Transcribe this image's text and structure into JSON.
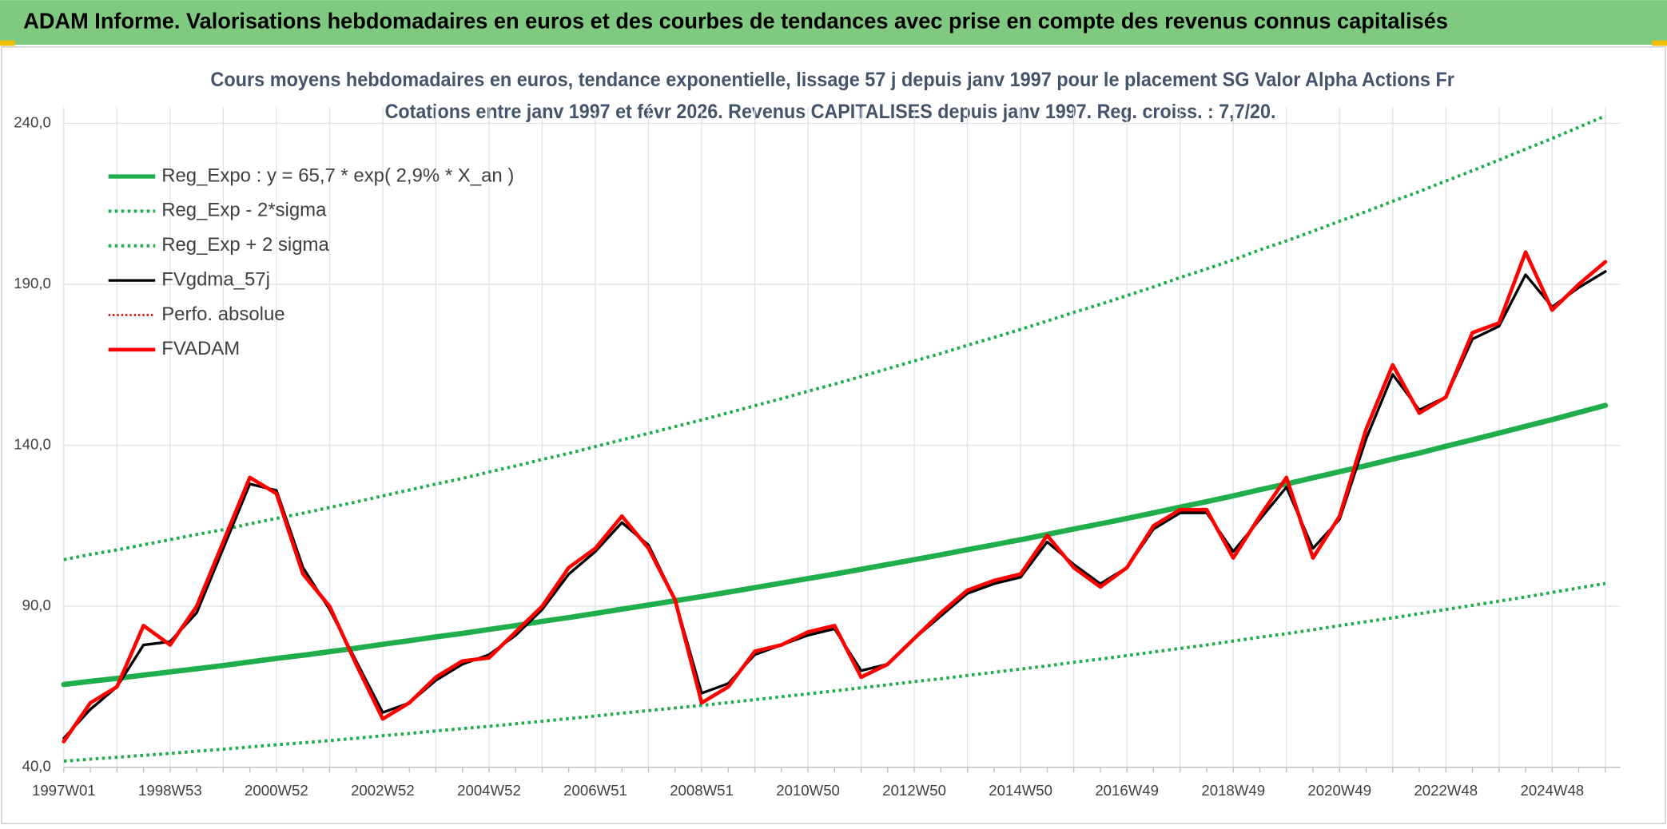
{
  "chart_data": {
    "type": "line",
    "title": "ADAM Informe. Valorisations hebdomadaires en euros et des courbes de tendances avec prise en compte des revenus connus capitalisés",
    "subtitle": [
      "Cours moyens hebdomadaires en euros, tendance exponentielle, lissage 57 j depuis janv 1997 pour le placement SG Valor Alpha Actions Fr",
      "Cotations entre janv 1997 et févr 2026. Revenus CAPITALISES depuis janv 1997. Reg. croiss. : 7,7/20."
    ],
    "categories": [
      "1997W01",
      null,
      null,
      null,
      "1998W53",
      null,
      null,
      null,
      "2000W52",
      null,
      null,
      null,
      "2002W52",
      null,
      null,
      null,
      "2004W52",
      null,
      null,
      null,
      "2006W51",
      null,
      null,
      null,
      "2008W51",
      null,
      null,
      null,
      "2010W50",
      null,
      null,
      null,
      "2012W50",
      null,
      null,
      null,
      "2014W50",
      null,
      null,
      null,
      "2016W49",
      null,
      null,
      null,
      "2018W49",
      null,
      null,
      null,
      "2020W49",
      null,
      null,
      null,
      "2022W48",
      null,
      null,
      null,
      "2024W48",
      null,
      null
    ],
    "ylim": [
      40,
      245
    ],
    "yticks": [
      {
        "value": 40,
        "label": "40,0"
      },
      {
        "value": 90,
        "label": "90,0"
      },
      {
        "value": 140,
        "label": "140,0"
      },
      {
        "value": 190,
        "label": "190,0"
      },
      {
        "value": 240,
        "label": "240,0"
      }
    ],
    "grid": true,
    "legend": "upper left",
    "series": [
      {
        "name": "Reg_Expo : y = 65,7 * exp( 2,9% *  X_an )",
        "color": "#1fae4b",
        "style": "solid",
        "linewidth": 5,
        "values": [
          65.7,
          66.7,
          67.6,
          68.6,
          69.6,
          70.6,
          71.6,
          72.7,
          73.8,
          74.8,
          75.9,
          77.0,
          78.2,
          79.3,
          80.5,
          81.6,
          82.8,
          84.0,
          85.3,
          86.5,
          87.8,
          89.1,
          90.4,
          91.7,
          93.0,
          94.4,
          95.8,
          97.2,
          98.6,
          100.0,
          101.5,
          103.0,
          104.5,
          106.0,
          107.6,
          109.1,
          110.7,
          112.3,
          114.0,
          115.6,
          117.3,
          119.0,
          120.8,
          122.5,
          124.3,
          126.2,
          128.0,
          129.9,
          131.8,
          133.7,
          135.7,
          137.6,
          139.7,
          141.7,
          143.8,
          145.9,
          148.0,
          150.2,
          152.4
        ]
      },
      {
        "name": "Reg_Exp - 2*sigma",
        "color": "#1fae4b",
        "style": "dotted",
        "linewidth": 3,
        "values": [
          41.9,
          42.5,
          43.1,
          43.7,
          44.3,
          45.0,
          45.6,
          46.3,
          47.0,
          47.6,
          48.3,
          49.0,
          49.8,
          50.5,
          51.3,
          52.0,
          52.7,
          53.5,
          54.3,
          55.1,
          55.9,
          56.8,
          57.6,
          58.4,
          59.2,
          60.1,
          61.0,
          61.9,
          62.8,
          63.7,
          64.7,
          65.6,
          66.6,
          67.5,
          68.5,
          69.5,
          70.5,
          71.5,
          72.6,
          73.6,
          74.7,
          75.8,
          76.9,
          78.0,
          79.2,
          80.4,
          81.5,
          82.7,
          84.0,
          85.2,
          86.4,
          87.7,
          89.0,
          90.3,
          91.6,
          92.9,
          94.3,
          95.7,
          97.1
        ]
      },
      {
        "name": "Reg_Exp + 2 sigma",
        "color": "#1fae4b",
        "style": "dotted",
        "linewidth": 3,
        "values": [
          104.5,
          106.1,
          107.5,
          109.1,
          110.7,
          112.3,
          113.8,
          115.6,
          117.3,
          118.9,
          120.7,
          122.4,
          124.3,
          126.1,
          128.0,
          129.7,
          131.7,
          133.6,
          135.6,
          137.5,
          139.6,
          141.7,
          143.7,
          145.8,
          147.9,
          150.1,
          152.3,
          154.5,
          156.8,
          159.0,
          161.4,
          163.8,
          166.2,
          168.5,
          171.1,
          173.5,
          176.0,
          178.6,
          181.3,
          183.8,
          186.5,
          189.2,
          192.1,
          194.8,
          197.6,
          200.7,
          203.5,
          206.5,
          209.6,
          212.6,
          215.8,
          218.8,
          222.1,
          225.3,
          228.6,
          232.0,
          235.3,
          238.8,
          242.3
        ]
      },
      {
        "name": "FVgdma_57j",
        "color": "#000000",
        "style": "solid",
        "linewidth": 2.5,
        "values": [
          49,
          58,
          65,
          78,
          79,
          88,
          108,
          128,
          126,
          102,
          89,
          73,
          57,
          60,
          67,
          72,
          75,
          81,
          89,
          100,
          107,
          116,
          109,
          92,
          63,
          66,
          75,
          78,
          81,
          83,
          70,
          72,
          80,
          87,
          94,
          97,
          99,
          110,
          103,
          97,
          102,
          114,
          119,
          119,
          107,
          117,
          127,
          108,
          117,
          142,
          162,
          151,
          155,
          173,
          177,
          193,
          183,
          189,
          194
        ]
      },
      {
        "name": "Perfo. absolue",
        "color": "#e00000",
        "style": "dotted",
        "linewidth": 2,
        "values": [
          48,
          60,
          65,
          84,
          78,
          90,
          110,
          130,
          125,
          100,
          90,
          72,
          55,
          60,
          68,
          73,
          74,
          82,
          90,
          102,
          108,
          118,
          108,
          92,
          60,
          65,
          76,
          78,
          82,
          84,
          68,
          72,
          80,
          88,
          95,
          98,
          100,
          112,
          102,
          96,
          102,
          115,
          120,
          120,
          105,
          118,
          130,
          105,
          118,
          145,
          165,
          150,
          155,
          175,
          178,
          200,
          182,
          190,
          197
        ]
      },
      {
        "name": "FVADAM",
        "color": "#ff0000",
        "style": "solid",
        "linewidth": 3.5,
        "values": [
          48,
          60,
          65,
          84,
          78,
          90,
          110,
          130,
          125,
          100,
          90,
          72,
          55,
          60,
          68,
          73,
          74,
          82,
          90,
          102,
          108,
          118,
          108,
          92,
          60,
          65,
          76,
          78,
          82,
          84,
          68,
          72,
          80,
          88,
          95,
          98,
          100,
          112,
          102,
          96,
          102,
          115,
          120,
          120,
          105,
          118,
          130,
          105,
          118,
          145,
          165,
          150,
          155,
          175,
          178,
          200,
          182,
          190,
          197
        ]
      }
    ]
  }
}
